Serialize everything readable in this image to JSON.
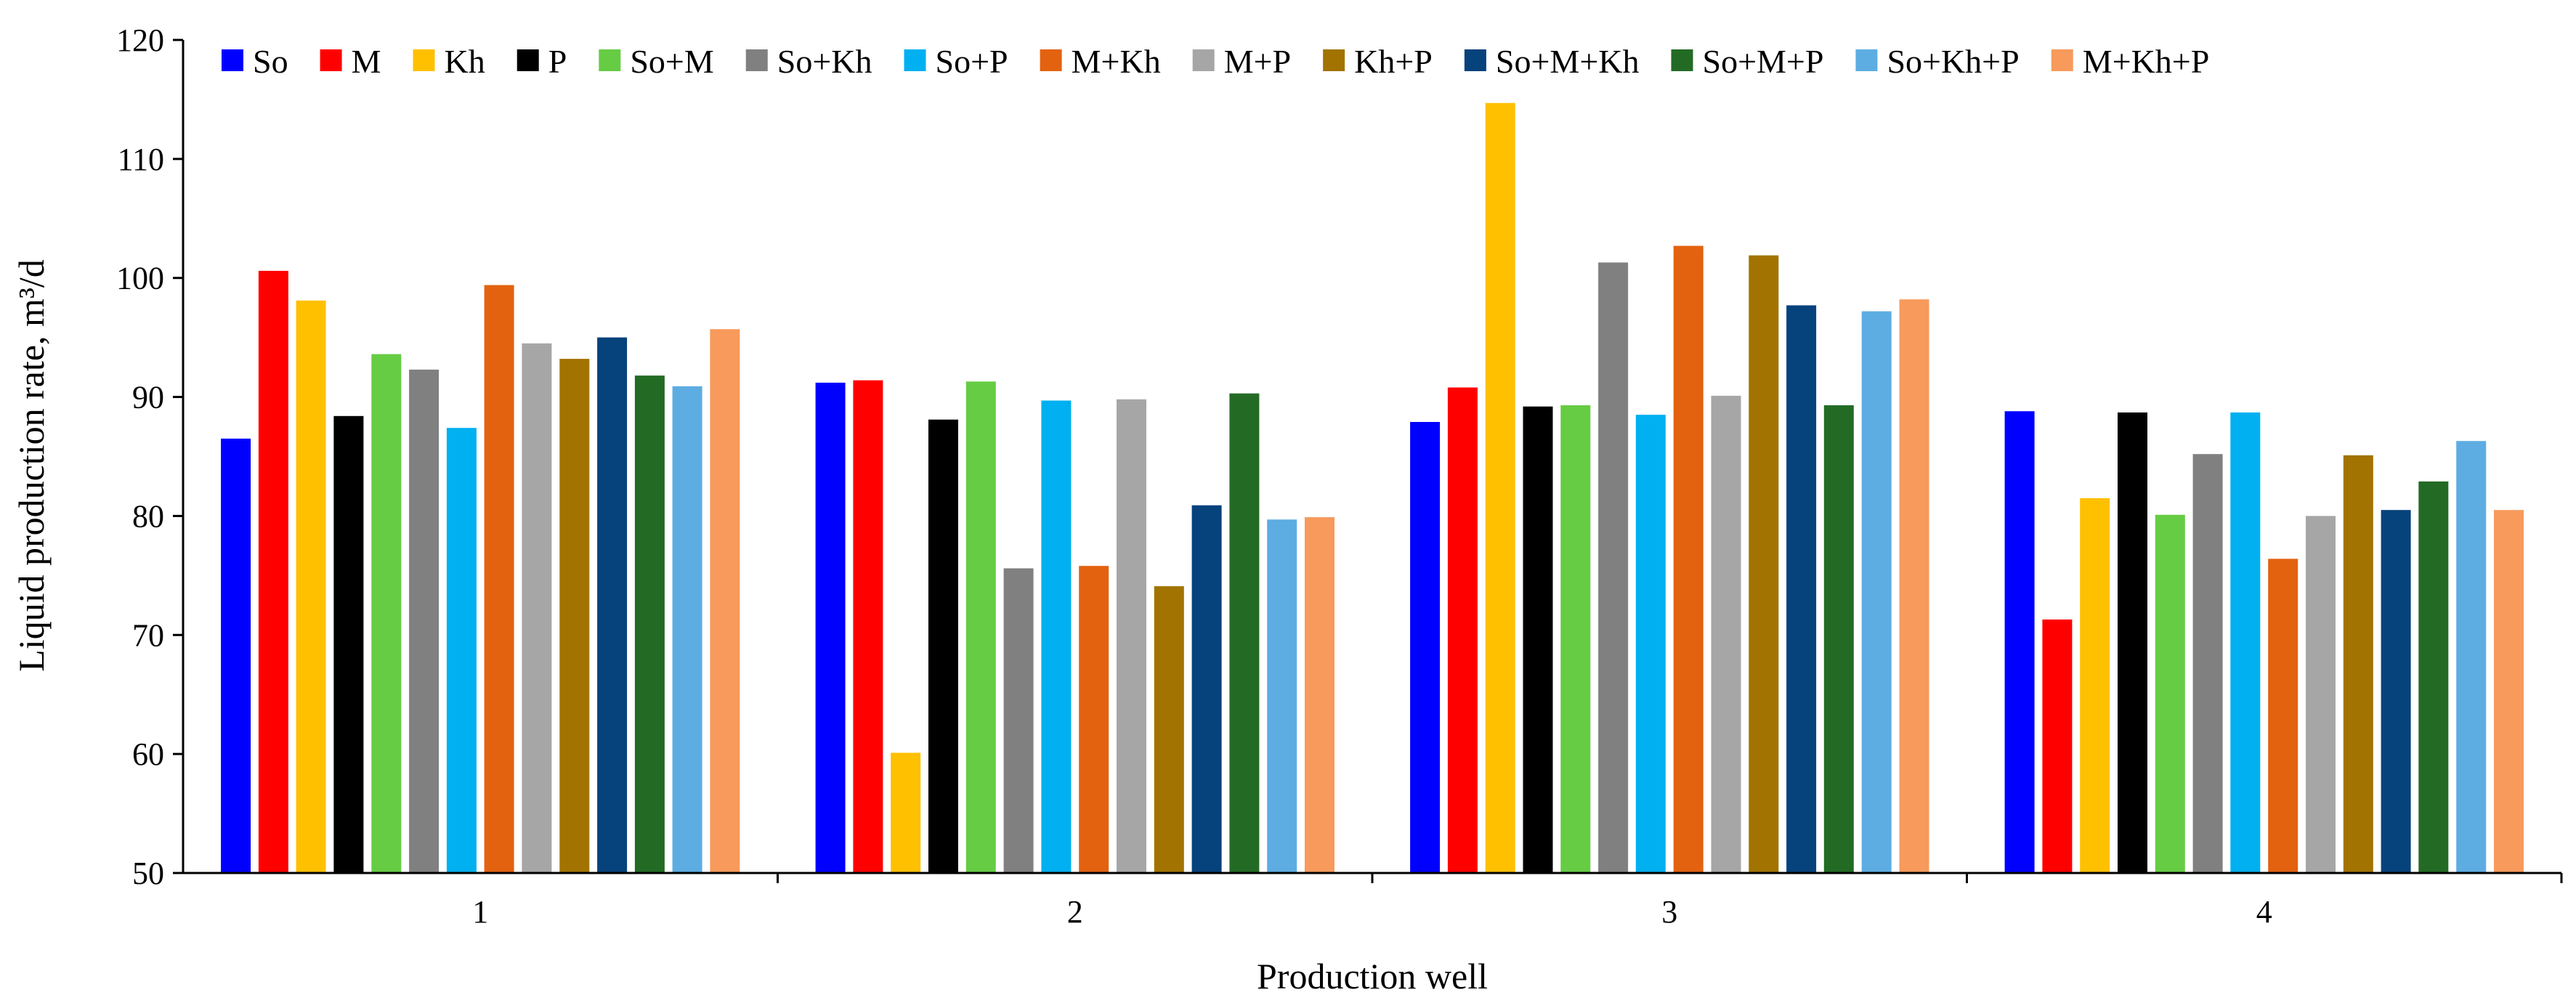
{
  "chart_data": {
    "type": "bar",
    "title": "",
    "xlabel": "Production well",
    "ylabel": "Liquid production rate, m³/d",
    "ylim": [
      50,
      120
    ],
    "yticks": [
      50,
      60,
      70,
      80,
      90,
      100,
      110,
      120
    ],
    "grid": false,
    "legend_position": "top",
    "categories": [
      "1",
      "2",
      "3",
      "4"
    ],
    "series": [
      {
        "name": "So",
        "color": "#0000FF",
        "values": [
          86.5,
          91.2,
          87.9,
          88.8
        ]
      },
      {
        "name": "M",
        "color": "#FF0000",
        "values": [
          100.6,
          91.4,
          90.8,
          71.3
        ]
      },
      {
        "name": "Kh",
        "color": "#FFC000",
        "values": [
          98.1,
          60.1,
          114.7,
          81.5
        ]
      },
      {
        "name": "P",
        "color": "#000000",
        "values": [
          88.4,
          88.1,
          89.2,
          88.7
        ]
      },
      {
        "name": "So+M",
        "color": "#66CC44",
        "values": [
          93.6,
          91.3,
          89.3,
          80.1
        ]
      },
      {
        "name": "So+Kh",
        "color": "#808080",
        "values": [
          92.3,
          75.6,
          101.3,
          85.2
        ]
      },
      {
        "name": "So+P",
        "color": "#00B0F0",
        "values": [
          87.4,
          89.7,
          88.5,
          88.7
        ]
      },
      {
        "name": "M+Kh",
        "color": "#E36210",
        "values": [
          99.4,
          75.8,
          102.7,
          76.4
        ]
      },
      {
        "name": "M+P",
        "color": "#A6A6A6",
        "values": [
          94.5,
          89.8,
          90.1,
          80.0
        ]
      },
      {
        "name": "Kh+P",
        "color": "#A27300",
        "values": [
          93.2,
          74.1,
          101.9,
          85.1
        ]
      },
      {
        "name": "So+M+Kh",
        "color": "#06427C",
        "values": [
          95.0,
          80.9,
          97.7,
          80.5
        ]
      },
      {
        "name": "So+M+P",
        "color": "#236B25",
        "values": [
          91.8,
          90.3,
          89.3,
          82.9
        ]
      },
      {
        "name": "So+Kh+P",
        "color": "#5DADE2",
        "values": [
          90.9,
          79.7,
          97.2,
          86.3
        ]
      },
      {
        "name": "M+Kh+P",
        "color": "#F79A5C",
        "values": [
          95.7,
          79.9,
          98.2,
          80.5
        ]
      }
    ]
  }
}
